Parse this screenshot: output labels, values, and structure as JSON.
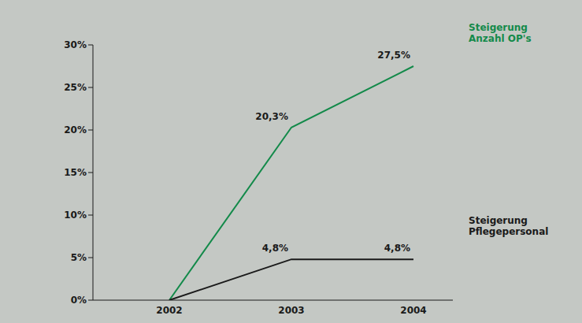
{
  "chart_data": {
    "type": "line",
    "categories": [
      "2002",
      "2003",
      "2004"
    ],
    "series": [
      {
        "name": "Steigerung Anzahl OP's",
        "color": "#138a4a",
        "values": [
          0,
          20.3,
          27.5
        ],
        "value_labels": [
          null,
          "20,3%",
          "27,5%"
        ]
      },
      {
        "name": "Steigerung Pflegepersonal",
        "color": "#1a1a1a",
        "values": [
          0,
          4.8,
          4.8
        ],
        "value_labels": [
          null,
          "4,8%",
          "4,8%"
        ]
      }
    ],
    "ylim": [
      0,
      30
    ],
    "yticks": [
      {
        "value": 0,
        "label": "0%"
      },
      {
        "value": 5,
        "label": "5%"
      },
      {
        "value": 10,
        "label": "10%"
      },
      {
        "value": 15,
        "label": "15%"
      },
      {
        "value": 20,
        "label": "20%"
      },
      {
        "value": 25,
        "label": "25%"
      },
      {
        "value": 30,
        "label": "30%"
      }
    ],
    "data_labels": true,
    "grid": false
  }
}
